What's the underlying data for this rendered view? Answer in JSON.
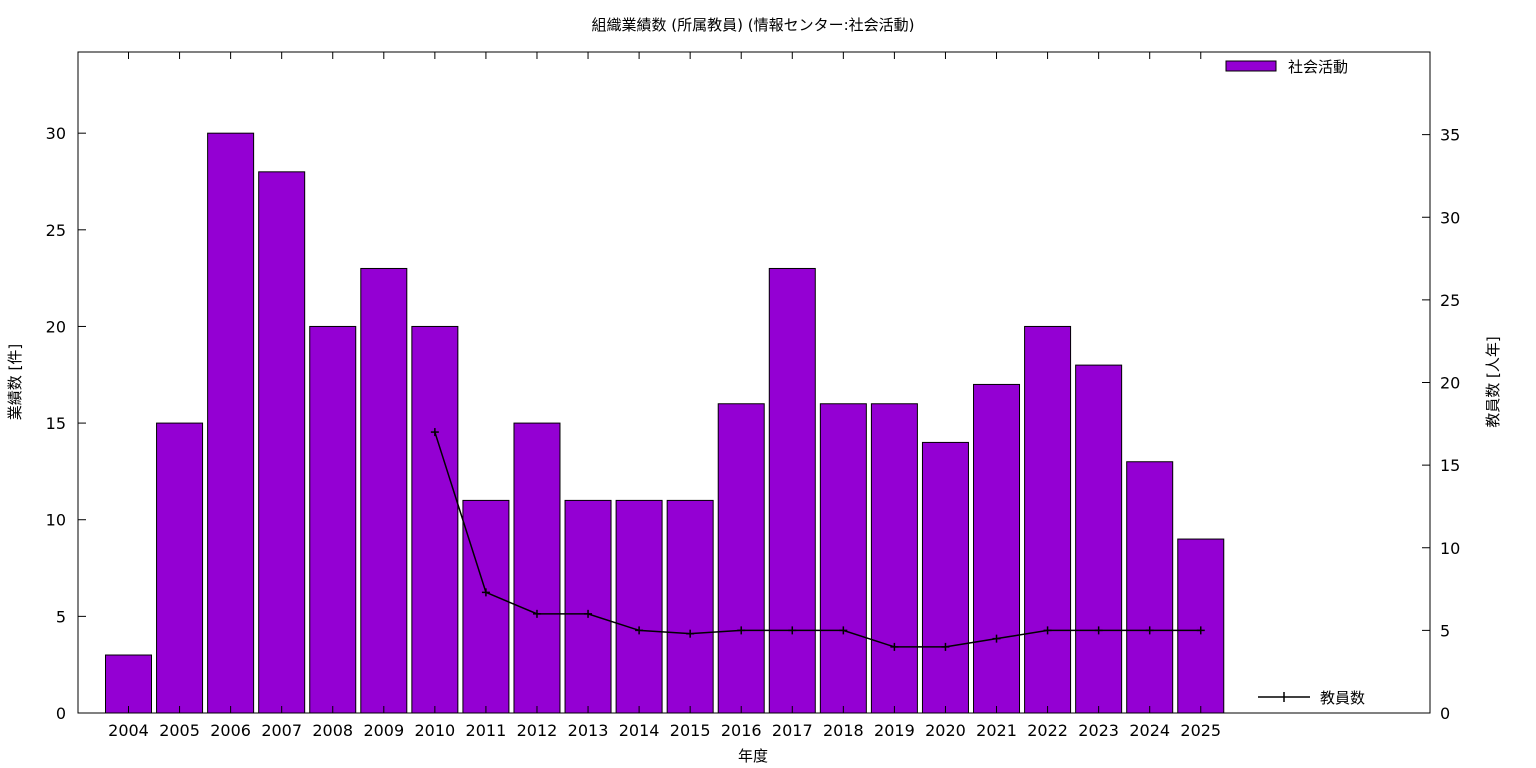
{
  "chart_data": {
    "type": "bar",
    "title": "組織業績数 (所属教員) (情報センター:社会活動)",
    "xlabel": "年度",
    "ylabel": "業績数 [件]",
    "y2label": "教員数 [人年]",
    "categories": [
      "2004",
      "2005",
      "2006",
      "2007",
      "2008",
      "2009",
      "2010",
      "2011",
      "2012",
      "2013",
      "2014",
      "2015",
      "2016",
      "2017",
      "2018",
      "2019",
      "2020",
      "2021",
      "2022",
      "2023",
      "2024",
      "2025"
    ],
    "ylim": [
      0,
      34.2
    ],
    "yticks": [
      0,
      5,
      10,
      15,
      20,
      25,
      30
    ],
    "y2lim": [
      0,
      40
    ],
    "y2ticks": [
      0,
      5,
      10,
      15,
      20,
      25,
      30,
      35
    ],
    "grid": false,
    "legend_position": "top-right",
    "series": [
      {
        "name": "社会活動",
        "kind": "bar",
        "axis": "left",
        "color": "#9400d3",
        "values": [
          3,
          15,
          30,
          28,
          20,
          23,
          20,
          11,
          15,
          11,
          11,
          11,
          16,
          23,
          16,
          16,
          14,
          17,
          20,
          18,
          13,
          9
        ]
      },
      {
        "name": "教員数",
        "kind": "line",
        "axis": "right",
        "color": "#000000",
        "values": [
          null,
          null,
          null,
          null,
          null,
          null,
          17,
          7.3,
          6,
          6,
          5,
          4.8,
          5,
          5,
          5,
          4,
          4,
          4.5,
          5,
          5,
          5,
          5
        ]
      }
    ]
  }
}
